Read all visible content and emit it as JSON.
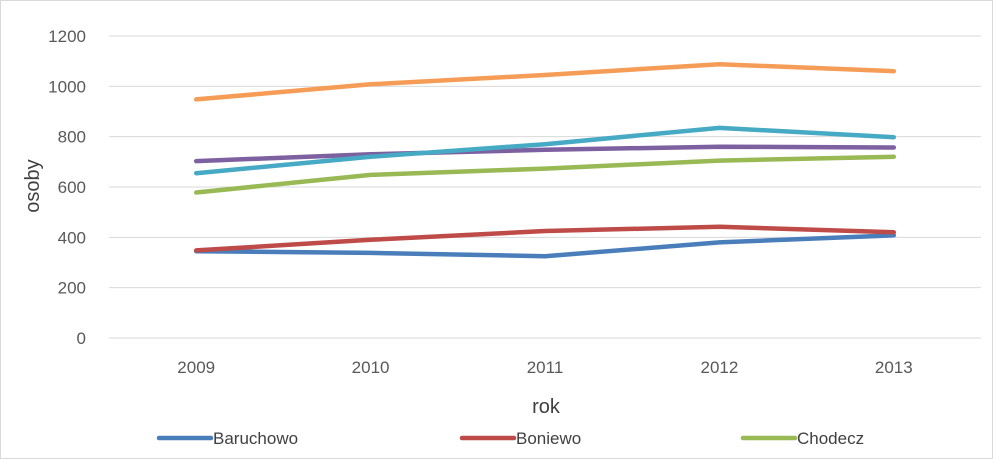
{
  "chart_data": {
    "type": "line",
    "title": "",
    "xlabel": "rok",
    "ylabel": "osoby",
    "categories": [
      "2009",
      "2010",
      "2011",
      "2012",
      "2013"
    ],
    "ylim": [
      0,
      1200
    ],
    "yticks": [
      0,
      200,
      400,
      600,
      800,
      1000,
      1200
    ],
    "grid": true,
    "legend_position": "bottom",
    "series": [
      {
        "name": "Baruchowo",
        "color": "#4a7ebb",
        "values": [
          345,
          338,
          325,
          380,
          408
        ]
      },
      {
        "name": "Boniewo",
        "color": "#be4b48",
        "values": [
          348,
          390,
          425,
          442,
          420
        ]
      },
      {
        "name": "Chodecz",
        "color": "#98b954",
        "values": [
          578,
          648,
          673,
          705,
          720
        ]
      },
      {
        "name": "",
        "color": "#7d60a0",
        "values": [
          703,
          730,
          748,
          760,
          757
        ]
      },
      {
        "name": "",
        "color": "#46aac5",
        "values": [
          655,
          720,
          770,
          835,
          798
        ]
      },
      {
        "name": "",
        "color": "#f59d56",
        "values": [
          948,
          1008,
          1045,
          1088,
          1060
        ]
      }
    ]
  }
}
